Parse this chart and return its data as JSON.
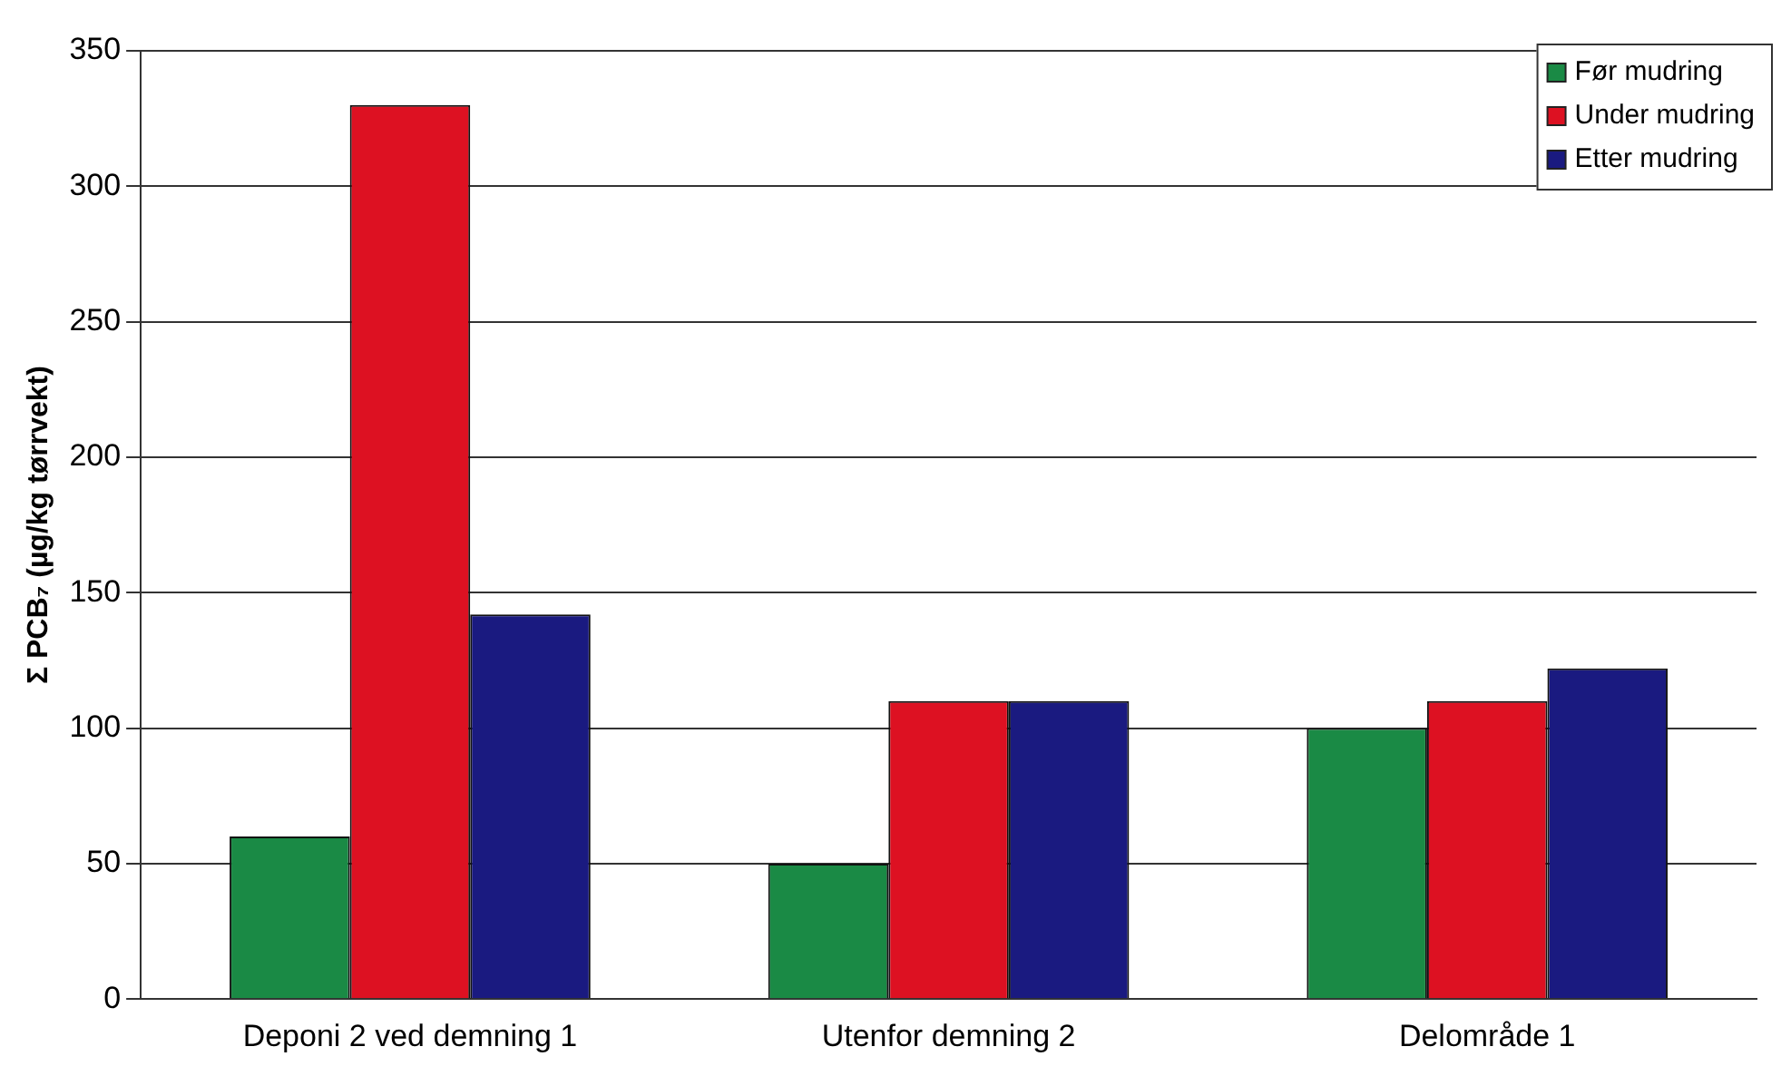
{
  "chart_data": {
    "type": "bar",
    "ylabel": "Σ PCB₇ (µg/kg tørrvekt)",
    "categories": [
      "Deponi 2 ved demning 1",
      "Utenfor demning 2",
      "Delområde 1"
    ],
    "series": [
      {
        "name": "Før mudring",
        "color": "#1a8a45",
        "values": [
          60,
          50,
          100
        ]
      },
      {
        "name": "Under mudring",
        "color": "#dd1122",
        "values": [
          330,
          110,
          110
        ]
      },
      {
        "name": "Etter mudring",
        "color": "#1a1a80",
        "values": [
          142,
          110,
          122
        ]
      }
    ],
    "ylim": [
      0,
      350
    ],
    "yticks": [
      0,
      50,
      100,
      150,
      200,
      250,
      300,
      350
    ],
    "grid": "y",
    "legend": "top right"
  }
}
